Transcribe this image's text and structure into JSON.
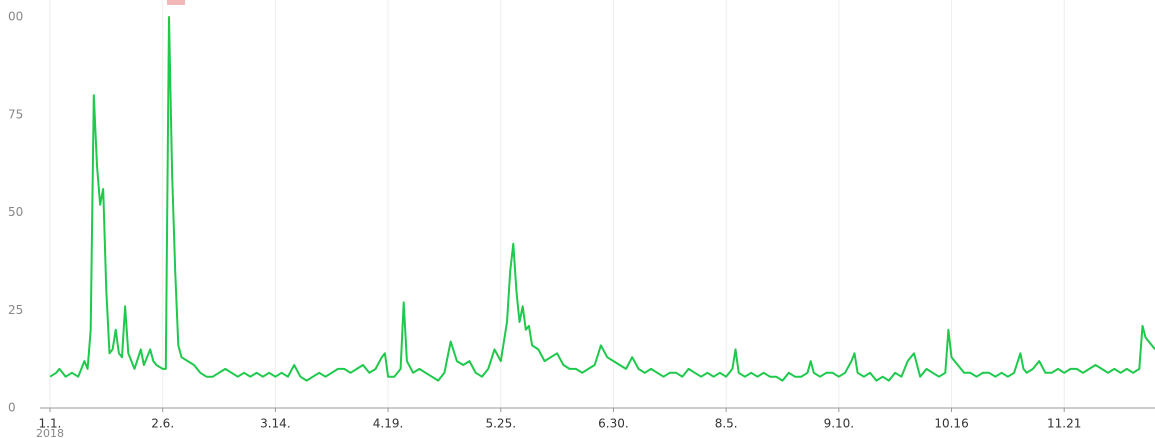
{
  "chart_data": {
    "type": "line",
    "year_label": "2018",
    "x": [
      0,
      2,
      3,
      5,
      7,
      9,
      11,
      12,
      13,
      14,
      15,
      16,
      17,
      18,
      19,
      20,
      21,
      22,
      23,
      24,
      25,
      27,
      29,
      30,
      32,
      33,
      34,
      36,
      37,
      38,
      39,
      40,
      41,
      42,
      44,
      46,
      48,
      50,
      52,
      54,
      56,
      58,
      60,
      62,
      64,
      66,
      68,
      70,
      72,
      74,
      76,
      78,
      80,
      82,
      84,
      86,
      88,
      90,
      92,
      94,
      96,
      98,
      100,
      102,
      104,
      106,
      107,
      108,
      110,
      112,
      113,
      114,
      116,
      118,
      120,
      122,
      124,
      126,
      128,
      130,
      132,
      134,
      136,
      138,
      140,
      142,
      144,
      146,
      147,
      148,
      149,
      150,
      151,
      152,
      153,
      154,
      156,
      158,
      160,
      162,
      164,
      166,
      168,
      170,
      172,
      174,
      176,
      178,
      180,
      182,
      184,
      186,
      188,
      190,
      192,
      194,
      196,
      198,
      200,
      202,
      204,
      206,
      208,
      210,
      212,
      214,
      216,
      218,
      219,
      220,
      222,
      224,
      226,
      228,
      230,
      232,
      234,
      236,
      238,
      240,
      242,
      243,
      244,
      246,
      248,
      250,
      252,
      254,
      256,
      257,
      258,
      260,
      262,
      264,
      266,
      268,
      270,
      272,
      274,
      275,
      276,
      278,
      280,
      282,
      284,
      286,
      287,
      288,
      290,
      292,
      294,
      296,
      298,
      300,
      302,
      304,
      306,
      308,
      310,
      311,
      312,
      314,
      316,
      318,
      320,
      322,
      324,
      326,
      328,
      330,
      332,
      334,
      336,
      338,
      340,
      342,
      344,
      346,
      348,
      349,
      350,
      352,
      353
    ],
    "series": [
      {
        "color": "#1ec94c",
        "values": [
          8,
          9,
          10,
          8,
          9,
          8,
          12,
          10,
          20,
          80,
          62,
          52,
          56,
          30,
          14,
          15,
          20,
          14,
          13,
          26,
          14,
          10,
          15,
          11,
          15,
          12,
          11,
          10,
          10,
          100,
          60,
          35,
          16,
          13,
          12,
          11,
          9,
          8,
          8,
          9,
          10,
          9,
          8,
          9,
          8,
          9,
          8,
          9,
          8,
          9,
          8,
          11,
          8,
          7,
          8,
          9,
          8,
          9,
          10,
          10,
          9,
          10,
          11,
          9,
          10,
          13,
          14,
          8,
          8,
          10,
          27,
          12,
          9,
          10,
          9,
          8,
          7,
          9,
          17,
          12,
          11,
          12,
          9,
          8,
          10,
          15,
          12,
          22,
          35,
          42,
          30,
          22,
          26,
          20,
          21,
          16,
          15,
          12,
          13,
          14,
          11,
          10,
          10,
          9,
          10,
          11,
          16,
          13,
          12,
          11,
          10,
          13,
          10,
          9,
          10,
          9,
          8,
          9,
          9,
          8,
          10,
          9,
          8,
          9,
          8,
          9,
          8,
          10,
          15,
          9,
          8,
          9,
          8,
          9,
          8,
          8,
          7,
          9,
          8,
          8,
          9,
          12,
          9,
          8,
          9,
          9,
          8,
          9,
          12,
          14,
          9,
          8,
          9,
          7,
          8,
          7,
          9,
          8,
          12,
          13,
          14,
          8,
          10,
          9,
          8,
          9,
          20,
          13,
          11,
          9,
          9,
          8,
          9,
          9,
          8,
          9,
          8,
          9,
          14,
          10,
          9,
          10,
          12,
          9,
          9,
          10,
          9,
          10,
          10,
          9,
          10,
          11,
          10,
          9,
          10,
          9,
          10,
          9,
          10,
          21,
          18,
          16,
          15
        ]
      }
    ],
    "xlim": [
      0,
      353
    ],
    "xticks": [
      {
        "value": 0,
        "label": "1.1."
      },
      {
        "value": 36,
        "label": "2.6."
      },
      {
        "value": 72,
        "label": "3.14."
      },
      {
        "value": 108,
        "label": "4.19."
      },
      {
        "value": 144,
        "label": "5.25."
      },
      {
        "value": 180,
        "label": "6.30."
      },
      {
        "value": 216,
        "label": "8.5."
      },
      {
        "value": 252,
        "label": "9.10."
      },
      {
        "value": 288,
        "label": "10.16"
      },
      {
        "value": 324,
        "label": "11.21"
      }
    ],
    "ylim": [
      0,
      100
    ],
    "yticks": [
      0,
      25,
      50,
      75,
      {
        "value": 100,
        "label": "00"
      }
    ],
    "grid": true
  }
}
